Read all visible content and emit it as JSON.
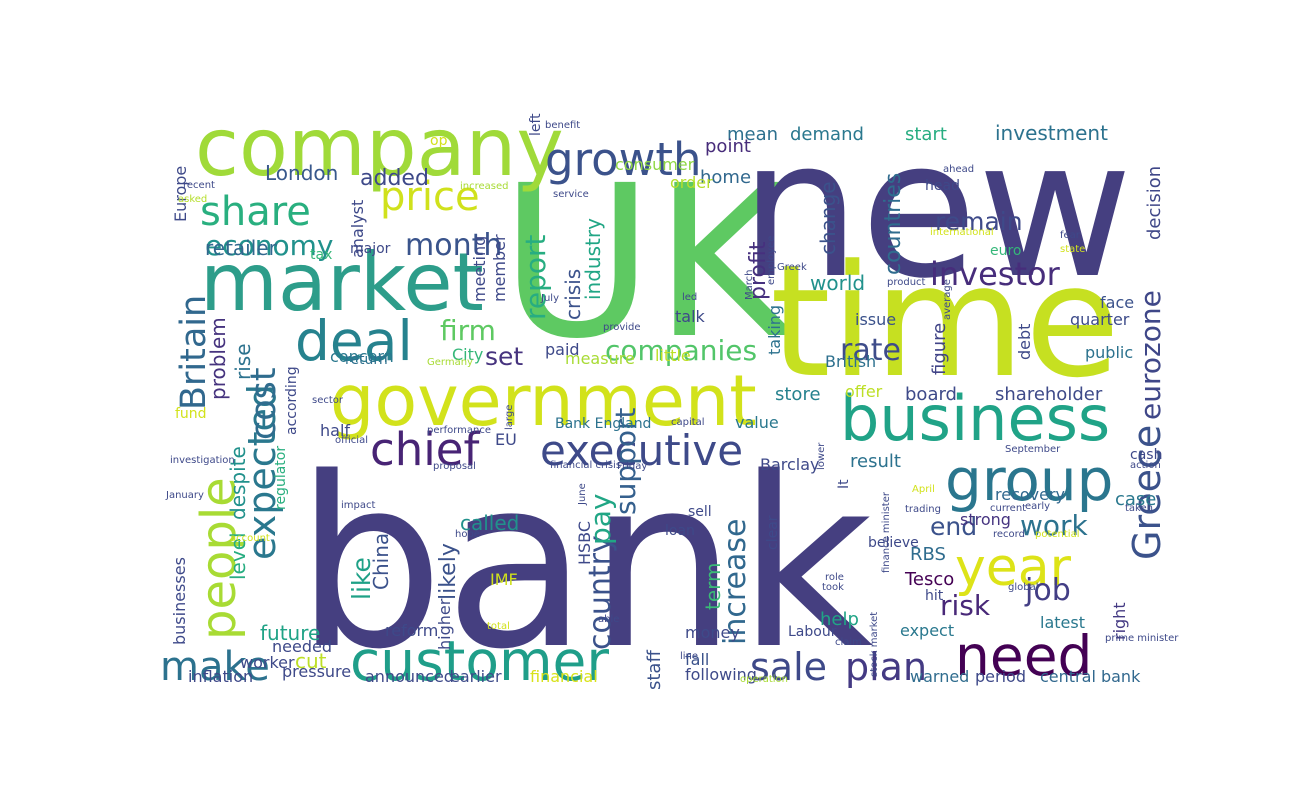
{
  "words": [
    {
      "text": "bank",
      "color": "#453f80"
    },
    {
      "text": "UK",
      "color": "#5ec962"
    },
    {
      "text": "new",
      "color": "#453f80"
    },
    {
      "text": "time",
      "color": "#c6e021"
    },
    {
      "text": "company",
      "color": "#a0da39"
    },
    {
      "text": "government",
      "color": "#d2e21b"
    },
    {
      "text": "market",
      "color": "#2d9d8a"
    },
    {
      "text": "business",
      "color": "#20a387"
    },
    {
      "text": "customer",
      "color": "#1f9e89"
    },
    {
      "text": "group",
      "color": "#2a768e"
    },
    {
      "text": "people",
      "color": "#a8db34"
    },
    {
      "text": "executive",
      "color": "#3e4a89"
    },
    {
      "text": "year",
      "color": "#dde318"
    },
    {
      "text": "need",
      "color": "#440154"
    },
    {
      "text": "deal",
      "color": "#26828e"
    },
    {
      "text": "chief",
      "color": "#482475"
    },
    {
      "text": "growth",
      "color": "#3b528b"
    },
    {
      "text": "expected",
      "color": "#2a788e"
    },
    {
      "text": "Britain",
      "color": "#31688e"
    },
    {
      "text": "Greece",
      "color": "#3b528b"
    },
    {
      "text": "make",
      "color": "#2c728e"
    },
    {
      "text": "sale",
      "color": "#3e4989"
    },
    {
      "text": "plan",
      "color": "#443a83"
    },
    {
      "text": "price",
      "color": "#d0e11c"
    },
    {
      "text": "share",
      "color": "#29af7f"
    },
    {
      "text": "month",
      "color": "#3a548c"
    },
    {
      "text": "cost",
      "color": "#2f6c8e"
    },
    {
      "text": "economy",
      "color": "#21918c"
    },
    {
      "text": "investor",
      "color": "#472d7b"
    },
    {
      "text": "rate",
      "color": "#3e4c8a"
    },
    {
      "text": "companies",
      "color": "#52c569"
    },
    {
      "text": "country",
      "color": "#3b528b"
    },
    {
      "text": "increase",
      "color": "#31688e"
    },
    {
      "text": "eurozone",
      "color": "#3f4788"
    },
    {
      "text": "report",
      "color": "#27ad81"
    },
    {
      "text": "firm",
      "color": "#5ec962"
    },
    {
      "text": "work",
      "color": "#2c728e"
    },
    {
      "text": "job",
      "color": "#433e85"
    },
    {
      "text": "risk",
      "color": "#482878"
    },
    {
      "text": "end",
      "color": "#3b528b"
    },
    {
      "text": "pay",
      "color": "#21a685"
    },
    {
      "text": "support",
      "color": "#35608d"
    },
    {
      "text": "set",
      "color": "#46337e"
    },
    {
      "text": "remain",
      "color": "#3e4a89"
    },
    {
      "text": "countries",
      "color": "#2f6c8e"
    },
    {
      "text": "investment",
      "color": "#2c728e"
    },
    {
      "text": "decision",
      "color": "#3f4788"
    },
    {
      "text": "added",
      "color": "#3e4989"
    },
    {
      "text": "London",
      "color": "#38588c"
    },
    {
      "text": "retailer",
      "color": "#31688e"
    },
    {
      "text": "industry",
      "color": "#21a685"
    },
    {
      "text": "crisis",
      "color": "#3b528b"
    },
    {
      "text": "change",
      "color": "#3b528b"
    },
    {
      "text": "profit",
      "color": "#46307e"
    },
    {
      "text": "world",
      "color": "#21918c"
    },
    {
      "text": "like",
      "color": "#1fa187"
    },
    {
      "text": "China",
      "color": "#3b528b"
    },
    {
      "text": "likely",
      "color": "#3b528b"
    },
    {
      "text": "called",
      "color": "#21918c"
    },
    {
      "text": "term",
      "color": "#3aba76"
    },
    {
      "text": "level",
      "color": "#27ad81"
    },
    {
      "text": "despite",
      "color": "#21918c"
    },
    {
      "text": "problem",
      "color": "#46337e"
    },
    {
      "text": "rise",
      "color": "#2c728e"
    },
    {
      "text": "shareholder",
      "color": "#3e4a89"
    },
    {
      "text": "board",
      "color": "#3e4a89"
    },
    {
      "text": "store",
      "color": "#26828e"
    },
    {
      "text": "result",
      "color": "#2c728e"
    },
    {
      "text": "figure",
      "color": "#414487"
    },
    {
      "text": "case",
      "color": "#2a788e"
    },
    {
      "text": "recovery",
      "color": "#31688e"
    },
    {
      "text": "strong",
      "color": "#463480"
    },
    {
      "text": "RBS",
      "color": "#2f6c8e"
    },
    {
      "text": "Tesco",
      "color": "#440154"
    },
    {
      "text": "help",
      "color": "#20a486"
    },
    {
      "text": "future",
      "color": "#20a386"
    },
    {
      "text": "cut",
      "color": "#bddf26"
    },
    {
      "text": "money",
      "color": "#3e4a89"
    },
    {
      "text": "fall",
      "color": "#3b528b"
    },
    {
      "text": "staff",
      "color": "#3b528b"
    },
    {
      "text": "following",
      "color": "#3e4a89"
    },
    {
      "text": "announced",
      "color": "#3e4989"
    },
    {
      "text": "earlier",
      "color": "#3e4c8a"
    },
    {
      "text": "financial",
      "color": "#d8e219"
    },
    {
      "text": "central bank",
      "color": "#31688e"
    },
    {
      "text": "period",
      "color": "#3e4989"
    },
    {
      "text": "warned",
      "color": "#2f6c8e"
    },
    {
      "text": "expect",
      "color": "#2a788e"
    },
    {
      "text": "latest",
      "color": "#2a788e"
    },
    {
      "text": "right",
      "color": "#443a83"
    },
    {
      "text": "mean",
      "color": "#2d708e"
    },
    {
      "text": "demand",
      "color": "#2a788e"
    },
    {
      "text": "start",
      "color": "#27ad81"
    },
    {
      "text": "point",
      "color": "#472c7a"
    },
    {
      "text": "home",
      "color": "#31688e"
    },
    {
      "text": "consumer",
      "color": "#8fd744"
    },
    {
      "text": "order",
      "color": "#b5de2b"
    },
    {
      "text": "head",
      "color": "#3e4989"
    },
    {
      "text": "euro",
      "color": "#35b779"
    },
    {
      "text": "face",
      "color": "#3b528b"
    },
    {
      "text": "quarter",
      "color": "#3e4c8a"
    },
    {
      "text": "public",
      "color": "#2c728e"
    },
    {
      "text": "debt",
      "color": "#3e4989"
    },
    {
      "text": "British",
      "color": "#2d708e"
    },
    {
      "text": "issue",
      "color": "#3b528b"
    },
    {
      "text": "talk",
      "color": "#3e4989"
    },
    {
      "text": "taking",
      "color": "#2c728e"
    },
    {
      "text": "Bank England",
      "color": "#2c728e"
    },
    {
      "text": "value",
      "color": "#2a788e"
    },
    {
      "text": "Barclay",
      "color": "#3e4989"
    },
    {
      "text": "offer",
      "color": "#bddf26"
    },
    {
      "text": "concern",
      "color": "#2a788e"
    },
    {
      "text": "City",
      "color": "#35b779"
    },
    {
      "text": "paid",
      "color": "#3e4989"
    },
    {
      "text": "measure",
      "color": "#a8db34"
    },
    {
      "text": "little",
      "color": "#bddf26"
    },
    {
      "text": "member",
      "color": "#3e4989"
    },
    {
      "text": "meeting",
      "color": "#3e4989"
    },
    {
      "text": "analyst",
      "color": "#3e4989"
    },
    {
      "text": "major",
      "color": "#3e4989"
    },
    {
      "text": "Europe",
      "color": "#3e4989"
    },
    {
      "text": "tax",
      "color": "#35b779"
    },
    {
      "text": "return",
      "color": "#2d708e"
    },
    {
      "text": "according",
      "color": "#3e4989"
    },
    {
      "text": "regulator",
      "color": "#29af7f"
    },
    {
      "text": "fund",
      "color": "#d2e21b"
    },
    {
      "text": "half",
      "color": "#3e4989"
    },
    {
      "text": "EU",
      "color": "#3e4989"
    },
    {
      "text": "IMF",
      "color": "#d0e11c"
    },
    {
      "text": "HSBC",
      "color": "#3e4989"
    },
    {
      "text": "businesses",
      "color": "#3e4989"
    },
    {
      "text": "worker",
      "color": "#3e4989"
    },
    {
      "text": "higher",
      "color": "#3e4989"
    },
    {
      "text": "reform",
      "color": "#3e4989"
    },
    {
      "text": "needed",
      "color": "#3e4989"
    },
    {
      "text": "pressure",
      "color": "#3e4989"
    },
    {
      "text": "inflation",
      "color": "#3e4989"
    },
    {
      "text": "sell",
      "color": "#3e4989"
    },
    {
      "text": "loan",
      "color": "#3e4989"
    },
    {
      "text": "clear",
      "color": "#3e4989"
    },
    {
      "text": "believe",
      "color": "#3e4989"
    },
    {
      "text": "hit",
      "color": "#3e4989"
    },
    {
      "text": "cash",
      "color": "#3e4989"
    },
    {
      "text": "It",
      "color": "#3e4989"
    },
    {
      "text": "Labour",
      "color": "#3e4989"
    },
    {
      "text": "left",
      "color": "#3e4989"
    },
    {
      "text": "op",
      "color": "#d2e21b"
    },
    {
      "text": "asked",
      "color": "#b5de2b"
    },
    {
      "text": "recent",
      "color": "#3e4989"
    },
    {
      "text": "increased",
      "color": "#a8db34"
    },
    {
      "text": "benefit",
      "color": "#3e4989"
    },
    {
      "text": "service",
      "color": "#3e4989"
    },
    {
      "text": "ahead",
      "color": "#3e4989"
    },
    {
      "text": "international",
      "color": "#d2e21b"
    },
    {
      "text": "fear",
      "color": "#3e4989"
    },
    {
      "text": "state",
      "color": "#d2e21b"
    },
    {
      "text": "employee",
      "color": "#3e4989"
    },
    {
      "text": "Greek",
      "color": "#3e4989"
    },
    {
      "text": "March",
      "color": "#3e4989"
    },
    {
      "text": "led",
      "color": "#3e4989"
    },
    {
      "text": "July",
      "color": "#3e4989"
    },
    {
      "text": "provide",
      "color": "#3e4989"
    },
    {
      "text": "Germany",
      "color": "#a8db34"
    },
    {
      "text": "product",
      "color": "#3e4989"
    },
    {
      "text": "average",
      "color": "#3e4989"
    },
    {
      "text": "sector",
      "color": "#3e4989"
    },
    {
      "text": "large",
      "color": "#3e4989"
    },
    {
      "text": "performance",
      "color": "#3e4989"
    },
    {
      "text": "capital",
      "color": "#3e4989"
    },
    {
      "text": "official",
      "color": "#3e4989"
    },
    {
      "text": "lower",
      "color": "#3e4989"
    },
    {
      "text": "investigation",
      "color": "#3e4989"
    },
    {
      "text": "proposal",
      "color": "#3e4989"
    },
    {
      "text": "financial crisis",
      "color": "#3e4989"
    },
    {
      "text": "Friday",
      "color": "#3e4989"
    },
    {
      "text": "September",
      "color": "#3e4989"
    },
    {
      "text": "action",
      "color": "#3e4989"
    },
    {
      "text": "January",
      "color": "#3e4989"
    },
    {
      "text": "June",
      "color": "#3e4989"
    },
    {
      "text": "April",
      "color": "#d2e21b"
    },
    {
      "text": "impact",
      "color": "#3e4989"
    },
    {
      "text": "trading",
      "color": "#3e4989"
    },
    {
      "text": "current",
      "color": "#3e4989"
    },
    {
      "text": "early",
      "color": "#3e4989"
    },
    {
      "text": "taken",
      "color": "#3e4989"
    },
    {
      "text": "account",
      "color": "#d2e21b"
    },
    {
      "text": "hope",
      "color": "#3e4989"
    },
    {
      "text": "record",
      "color": "#3e4989"
    },
    {
      "text": "potential",
      "color": "#d2e21b"
    },
    {
      "text": "finance minister",
      "color": "#3e4989"
    },
    {
      "text": "role",
      "color": "#3e4989"
    },
    {
      "text": "took",
      "color": "#3e4989"
    },
    {
      "text": "global",
      "color": "#3e4989"
    },
    {
      "text": "able",
      "color": "#3e4989"
    },
    {
      "text": "total",
      "color": "#d2e21b"
    },
    {
      "text": "prime minister",
      "color": "#3e4989"
    },
    {
      "text": "claim",
      "color": "#3e4989"
    },
    {
      "text": "line",
      "color": "#3e4989"
    },
    {
      "text": "operation",
      "color": "#a8db34"
    },
    {
      "text": "stock market",
      "color": "#3e4989"
    },
    {
      "text": "saving",
      "color": "#d2e21b"
    }
  ]
}
